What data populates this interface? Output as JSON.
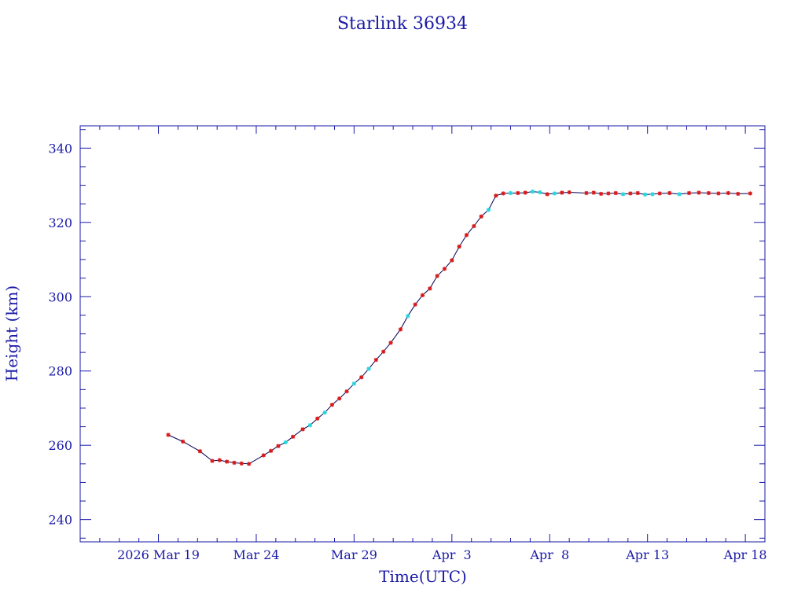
{
  "chart_data": {
    "type": "line",
    "title": "Starlink 36934",
    "xlabel": "Time(UTC)",
    "ylabel": "Height (km)",
    "xlim": [
      "2026-03-15",
      "2026-04-19"
    ],
    "ylim": [
      234,
      346
    ],
    "x_tick_labels": [
      {
        "date": "2026-03-19",
        "label": "2026 Mar 19"
      },
      {
        "date": "2026-03-24",
        "label": "Mar 24"
      },
      {
        "date": "2026-03-29",
        "label": "Mar 29"
      },
      {
        "date": "2026-04-03",
        "label": "Apr  3"
      },
      {
        "date": "2026-04-08",
        "label": "Apr  8"
      },
      {
        "date": "2026-04-13",
        "label": "Apr 13"
      },
      {
        "date": "2026-04-18",
        "label": "Apr 18"
      }
    ],
    "y_ticks": [
      240,
      260,
      280,
      300,
      320,
      340
    ],
    "grid": false,
    "colors": {
      "axis": "#1a1aa6",
      "line": "#000055",
      "marker_primary": "#d81818",
      "marker_secondary": "#22d6dc"
    },
    "series": [
      {
        "points": [
          {
            "x": "2026-03-19 12:00",
            "y": 262.8,
            "m": "r"
          },
          {
            "x": "2026-03-20 06:00",
            "y": 261.0,
            "m": "r"
          },
          {
            "x": "2026-03-21 03:00",
            "y": 258.4,
            "m": "r"
          },
          {
            "x": "2026-03-21 18:00",
            "y": 255.8,
            "m": "r"
          },
          {
            "x": "2026-03-22 03:00",
            "y": 256.0,
            "m": "r"
          },
          {
            "x": "2026-03-22 12:00",
            "y": 255.6,
            "m": "r"
          },
          {
            "x": "2026-03-22 21:00",
            "y": 255.3,
            "m": "r"
          },
          {
            "x": "2026-03-23 06:00",
            "y": 255.1,
            "m": "r"
          },
          {
            "x": "2026-03-23 15:00",
            "y": 255.0,
            "m": "r"
          },
          {
            "x": "2026-03-24 09:00",
            "y": 257.3,
            "m": "r"
          },
          {
            "x": "2026-03-24 18:00",
            "y": 258.5,
            "m": "r"
          },
          {
            "x": "2026-03-25 03:00",
            "y": 259.8,
            "m": "r"
          },
          {
            "x": "2026-03-25 12:00",
            "y": 260.8,
            "m": "c"
          },
          {
            "x": "2026-03-25 21:00",
            "y": 262.3,
            "m": "r"
          },
          {
            "x": "2026-03-26 09:00",
            "y": 264.3,
            "m": "r"
          },
          {
            "x": "2026-03-26 18:00",
            "y": 265.4,
            "m": "c"
          },
          {
            "x": "2026-03-27 03:00",
            "y": 267.2,
            "m": "r"
          },
          {
            "x": "2026-03-27 12:00",
            "y": 268.8,
            "m": "c"
          },
          {
            "x": "2026-03-27 21:00",
            "y": 270.9,
            "m": "r"
          },
          {
            "x": "2026-03-28 06:00",
            "y": 272.6,
            "m": "r"
          },
          {
            "x": "2026-03-28 15:00",
            "y": 274.5,
            "m": "r"
          },
          {
            "x": "2026-03-29 00:00",
            "y": 276.6,
            "m": "c"
          },
          {
            "x": "2026-03-29 09:00",
            "y": 278.3,
            "m": "r"
          },
          {
            "x": "2026-03-29 18:00",
            "y": 280.6,
            "m": "c"
          },
          {
            "x": "2026-03-30 03:00",
            "y": 283.0,
            "m": "r"
          },
          {
            "x": "2026-03-30 12:00",
            "y": 285.2,
            "m": "r"
          },
          {
            "x": "2026-03-30 21:00",
            "y": 287.6,
            "m": "r"
          },
          {
            "x": "2026-03-31 09:00",
            "y": 291.2,
            "m": "r"
          },
          {
            "x": "2026-03-31 18:00",
            "y": 294.8,
            "m": "c"
          },
          {
            "x": "2026-04-01 03:00",
            "y": 297.9,
            "m": "r"
          },
          {
            "x": "2026-04-01 12:00",
            "y": 300.4,
            "m": "r"
          },
          {
            "x": "2026-04-01 21:00",
            "y": 302.2,
            "m": "r"
          },
          {
            "x": "2026-04-02 06:00",
            "y": 305.6,
            "m": "r"
          },
          {
            "x": "2026-04-02 15:00",
            "y": 307.5,
            "m": "r"
          },
          {
            "x": "2026-04-03 00:00",
            "y": 309.8,
            "m": "r"
          },
          {
            "x": "2026-04-03 09:00",
            "y": 313.5,
            "m": "r"
          },
          {
            "x": "2026-04-03 18:00",
            "y": 316.6,
            "m": "r"
          },
          {
            "x": "2026-04-04 03:00",
            "y": 319.0,
            "m": "r"
          },
          {
            "x": "2026-04-04 12:00",
            "y": 321.6,
            "m": "r"
          },
          {
            "x": "2026-04-04 21:00",
            "y": 323.4,
            "m": "c"
          },
          {
            "x": "2026-04-05 06:00",
            "y": 327.2,
            "m": "r"
          },
          {
            "x": "2026-04-05 15:00",
            "y": 327.8,
            "m": "r"
          },
          {
            "x": "2026-04-06 00:00",
            "y": 327.9,
            "m": "c"
          },
          {
            "x": "2026-04-06 09:00",
            "y": 327.9,
            "m": "r"
          },
          {
            "x": "2026-04-06 18:00",
            "y": 328.0,
            "m": "r"
          },
          {
            "x": "2026-04-07 03:00",
            "y": 328.3,
            "m": "c"
          },
          {
            "x": "2026-04-07 12:00",
            "y": 328.1,
            "m": "c"
          },
          {
            "x": "2026-04-07 21:00",
            "y": 327.6,
            "m": "r"
          },
          {
            "x": "2026-04-08 06:00",
            "y": 327.8,
            "m": "c"
          },
          {
            "x": "2026-04-08 15:00",
            "y": 328.0,
            "m": "r"
          },
          {
            "x": "2026-04-09 00:00",
            "y": 328.1,
            "m": "r"
          },
          {
            "x": "2026-04-09 21:00",
            "y": 327.9,
            "m": "r"
          },
          {
            "x": "2026-04-10 06:00",
            "y": 328.0,
            "m": "r"
          },
          {
            "x": "2026-04-10 15:00",
            "y": 327.7,
            "m": "r"
          },
          {
            "x": "2026-04-11 00:00",
            "y": 327.8,
            "m": "r"
          },
          {
            "x": "2026-04-11 09:00",
            "y": 327.9,
            "m": "r"
          },
          {
            "x": "2026-04-11 18:00",
            "y": 327.6,
            "m": "c"
          },
          {
            "x": "2026-04-12 03:00",
            "y": 327.8,
            "m": "r"
          },
          {
            "x": "2026-04-12 12:00",
            "y": 327.9,
            "m": "r"
          },
          {
            "x": "2026-04-12 21:00",
            "y": 327.5,
            "m": "c"
          },
          {
            "x": "2026-04-13 06:00",
            "y": 327.6,
            "m": "c"
          },
          {
            "x": "2026-04-13 15:00",
            "y": 327.8,
            "m": "r"
          },
          {
            "x": "2026-04-14 03:00",
            "y": 327.9,
            "m": "r"
          },
          {
            "x": "2026-04-14 15:00",
            "y": 327.6,
            "m": "c"
          },
          {
            "x": "2026-04-15 03:00",
            "y": 327.9,
            "m": "r"
          },
          {
            "x": "2026-04-15 15:00",
            "y": 328.0,
            "m": "r"
          },
          {
            "x": "2026-04-16 03:00",
            "y": 327.9,
            "m": "r"
          },
          {
            "x": "2026-04-16 15:00",
            "y": 327.8,
            "m": "r"
          },
          {
            "x": "2026-04-17 03:00",
            "y": 327.9,
            "m": "r"
          },
          {
            "x": "2026-04-17 15:00",
            "y": 327.7,
            "m": "r"
          },
          {
            "x": "2026-04-18 06:00",
            "y": 327.8,
            "m": "r"
          }
        ]
      }
    ]
  }
}
